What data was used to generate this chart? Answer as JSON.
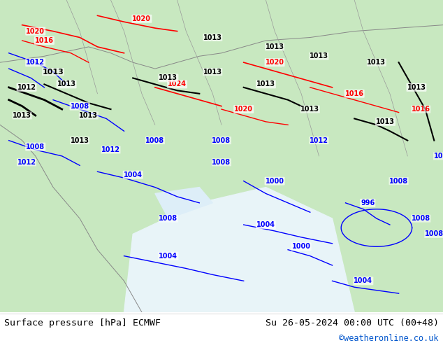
{
  "title_left": "Surface pressure [hPa] ECMWF",
  "title_right": "Su 26-05-2024 00:00 UTC (00+48)",
  "credit": "©weatheronline.co.uk",
  "bg_color": "#c8e6c8",
  "map_bg": "#d4ecd4",
  "text_color": "#000000",
  "credit_color": "#0055cc",
  "bottom_bar_color": "#ffffff",
  "figsize": [
    6.34,
    4.9
  ],
  "dpi": 100
}
